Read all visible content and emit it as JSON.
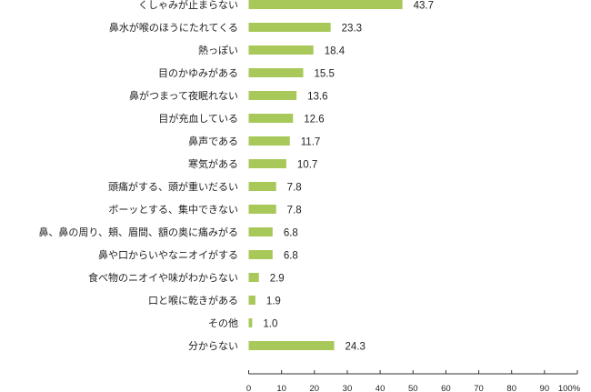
{
  "chart_data": {
    "type": "bar",
    "orientation": "horizontal",
    "categories": [
      "くしゃみが止まらない",
      "鼻水が喉のほうにたれてくる",
      "熱っぽい",
      "目のかゆみがある",
      "鼻がつまって夜眠れない",
      "目が充血している",
      "鼻声である",
      "寒気がある",
      "頭痛がする、頭が重いだるい",
      "ボーッとする、集中できない",
      "鼻、鼻の周り、頬、眉間、額の奥に痛みがる",
      "鼻や口からいやなニオイがする",
      "食べ物のニオイや味がわからない",
      "口と喉に乾きがある",
      "その他",
      "分からない"
    ],
    "values": [
      43.7,
      23.3,
      18.4,
      15.5,
      13.6,
      12.6,
      11.7,
      10.7,
      7.8,
      7.8,
      6.8,
      6.8,
      2.9,
      1.9,
      1.0,
      24.3
    ],
    "value_labels": [
      "43.7",
      "23.3",
      "18.4",
      "15.5",
      "13.6",
      "12.6",
      "11.7",
      "10.7",
      "7.8",
      "7.8",
      "6.8",
      "6.8",
      "2.9",
      "1.9",
      "1.0",
      "24.3"
    ],
    "xlim": [
      0,
      100
    ],
    "x_ticks": [
      "0",
      "10",
      "20",
      "30",
      "40",
      "50",
      "60",
      "70",
      "80",
      "90",
      "100%"
    ],
    "grid": false,
    "bar_color": "#a8c85a"
  }
}
